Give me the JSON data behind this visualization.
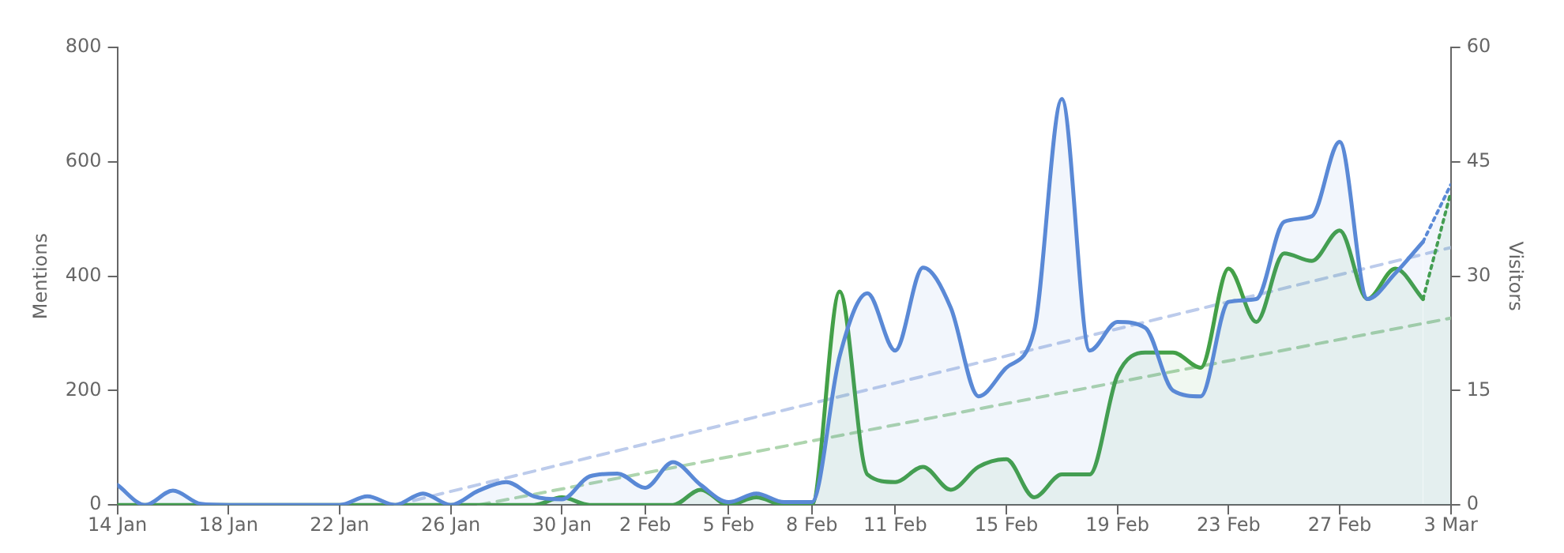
{
  "chart_data": {
    "type": "area",
    "ylabel": "Mentions",
    "y2label": "Visitors",
    "x": [
      "--01-14",
      "--01-15",
      "--01-16",
      "--01-17",
      "--01-18",
      "--01-19",
      "--01-20",
      "--01-21",
      "--01-22",
      "--01-23",
      "--01-24",
      "--01-25",
      "--01-26",
      "--01-27",
      "--01-28",
      "--01-29",
      "--01-30",
      "--01-31",
      "--02-01",
      "--02-02",
      "--02-03",
      "--02-04",
      "--02-05",
      "--02-06",
      "--02-07",
      "--02-08",
      "--02-09",
      "--02-10",
      "--02-11",
      "--02-12",
      "--02-13",
      "--02-14",
      "--02-15",
      "--02-16",
      "--02-17",
      "--02-18",
      "--02-19",
      "--02-20",
      "--02-21",
      "--02-22",
      "--02-23",
      "--02-24",
      "--02-25",
      "--02-26",
      "--02-27",
      "--02-28",
      "--03-01",
      "--03-02"
    ],
    "series": [
      {
        "axis": "y",
        "color": "#5a89d6",
        "values": [
          35,
          0,
          25,
          2,
          0,
          0,
          0,
          0,
          0,
          15,
          0,
          20,
          0,
          25,
          40,
          15,
          10,
          50,
          55,
          30,
          75,
          35,
          5,
          20,
          5,
          5,
          260,
          370,
          270,
          415,
          345,
          190,
          240,
          305,
          710,
          270,
          320,
          310,
          200,
          190,
          355,
          360,
          495,
          505,
          635,
          360,
          405,
          460
        ]
      },
      {
        "axis": "y2",
        "color": "#43a047",
        "values": [
          0,
          0,
          0,
          0,
          0,
          0,
          0,
          0,
          0,
          0,
          0,
          0,
          0,
          0,
          0,
          0,
          1,
          0,
          0,
          0,
          0,
          2,
          0,
          1,
          0,
          0,
          28,
          4,
          3,
          5,
          2,
          5,
          6,
          1,
          4,
          4,
          17,
          20,
          20,
          18,
          31,
          24,
          33,
          32,
          36,
          27,
          31,
          27
        ]
      },
      {
        "type": "area",
        "axis": "y",
        "color": "#5a89d6",
        "line_style": "dotted",
        "x": [
          "--03-02",
          "--03-03"
        ],
        "values": [
          460,
          560
        ]
      },
      {
        "type": "area",
        "axis": "y2",
        "color": "#43a047",
        "line_style": "dotted",
        "x": [
          "--03-02",
          "--03-03"
        ],
        "values": [
          27,
          41
        ]
      },
      {
        "type": "line",
        "axis": "y",
        "color": "#bccbeb",
        "line_style": "dashed",
        "x": [
          "--01-24",
          "--03-03"
        ],
        "values": [
          0,
          450
        ]
      },
      {
        "type": "line",
        "axis": "y2",
        "color": "#aed5ae",
        "line_style": "dashed",
        "x": [
          "--01-27",
          "--03-03"
        ],
        "values": [
          0,
          24.5
        ]
      }
    ],
    "xlim": [
      "--01-14",
      "--03-03"
    ],
    "xticks": [
      {
        "value": "--01-14",
        "label": "14 Jan"
      },
      {
        "value": "--01-18",
        "label": "18 Jan"
      },
      {
        "value": "--01-22",
        "label": "22 Jan"
      },
      {
        "value": "--01-26",
        "label": "26 Jan"
      },
      {
        "value": "--01-30",
        "label": "30 Jan"
      },
      {
        "value": "--02-02",
        "label": "2 Feb"
      },
      {
        "value": "--02-05",
        "label": "5 Feb"
      },
      {
        "value": "--02-08",
        "label": "8 Feb"
      },
      {
        "value": "--02-11",
        "label": "11 Feb"
      },
      {
        "value": "--02-15",
        "label": "15 Feb"
      },
      {
        "value": "--02-19",
        "label": "19 Feb"
      },
      {
        "value": "--02-23",
        "label": "23 Feb"
      },
      {
        "value": "--02-27",
        "label": "27 Feb"
      },
      {
        "value": "--03-03",
        "label": "3 Mar"
      }
    ],
    "ylim": [
      0,
      800
    ],
    "yticks": [
      0,
      200,
      400,
      600,
      800
    ],
    "y2lim": [
      0,
      60
    ],
    "y2ticks": [
      0,
      15,
      30,
      45,
      60
    ],
    "grid": false,
    "legend": false,
    "marker": "none",
    "line_style": "solid"
  }
}
